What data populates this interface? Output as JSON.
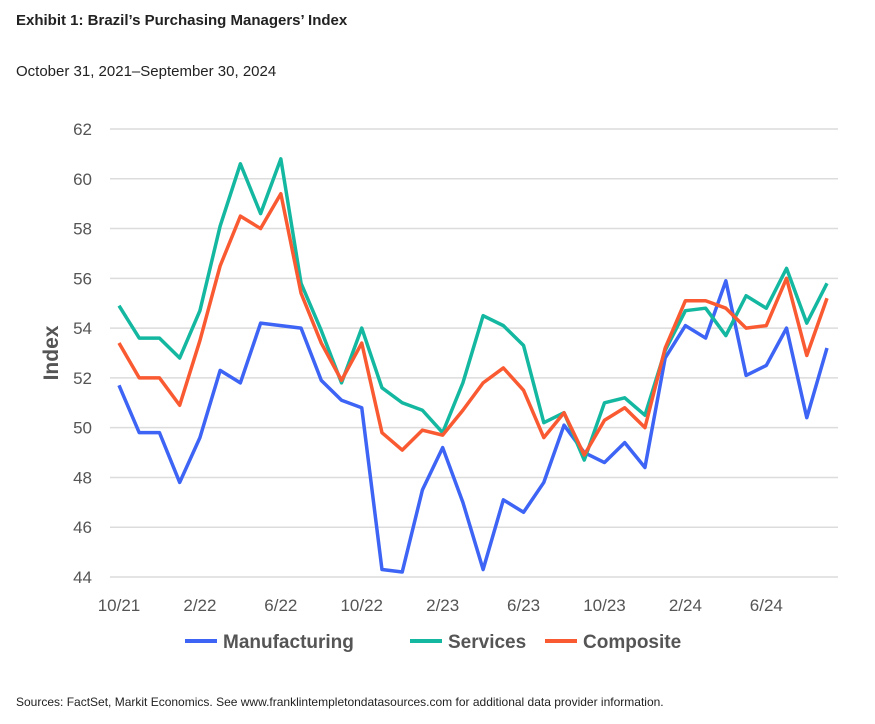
{
  "title": "Exhibit 1: Brazil’s Purchasing Managers’ Index",
  "subtitle": "October 31, 2021–September 30, 2024",
  "source": "Sources: FactSet, Markit Economics. See www.franklintempletondatasources.com for additional data provider information.",
  "chart_data": {
    "type": "line",
    "title": "Exhibit 1: Brazil’s Purchasing Managers’ Index",
    "ylabel": "Index",
    "xlabel": "",
    "ylim": [
      44,
      62
    ],
    "yticks": [
      "44",
      "46",
      "48",
      "50",
      "52",
      "54",
      "56",
      "58",
      "60",
      "62"
    ],
    "xticks": [
      "10/21",
      "2/22",
      "6/22",
      "10/22",
      "2/23",
      "6/23",
      "10/23",
      "2/24",
      "6/24"
    ],
    "grid": true,
    "legend_position": "bottom",
    "x": [
      "10/21",
      "11/21",
      "12/21",
      "1/22",
      "2/22",
      "3/22",
      "4/22",
      "5/22",
      "6/22",
      "7/22",
      "8/22",
      "9/22",
      "10/22",
      "11/22",
      "12/22",
      "1/23",
      "2/23",
      "3/23",
      "4/23",
      "5/23",
      "6/23",
      "7/23",
      "8/23",
      "9/23",
      "10/23",
      "11/23",
      "12/23",
      "1/24",
      "2/24",
      "3/24",
      "4/24",
      "5/24",
      "6/24",
      "7/24",
      "8/24",
      "9/24"
    ],
    "series": [
      {
        "name": "Manufacturing",
        "color": "#3d64f5",
        "values": [
          51.7,
          49.8,
          49.8,
          47.8,
          49.6,
          52.3,
          51.8,
          54.2,
          54.1,
          54.0,
          51.9,
          51.1,
          50.8,
          44.3,
          44.2,
          47.5,
          49.2,
          47.0,
          44.3,
          47.1,
          46.6,
          47.8,
          50.1,
          49.0,
          48.6,
          49.4,
          48.4,
          52.8,
          54.1,
          53.6,
          55.9,
          52.1,
          52.5,
          54.0,
          50.4,
          53.2
        ]
      },
      {
        "name": "Services",
        "color": "#14b8a0",
        "values": [
          54.9,
          53.6,
          53.6,
          52.8,
          54.7,
          58.1,
          60.6,
          58.6,
          60.8,
          55.8,
          53.9,
          51.8,
          54.0,
          51.6,
          51.0,
          50.7,
          49.8,
          51.8,
          54.5,
          54.1,
          53.3,
          50.2,
          50.6,
          48.7,
          51.0,
          51.2,
          50.5,
          53.1,
          54.7,
          54.8,
          53.7,
          55.3,
          54.8,
          56.4,
          54.2,
          55.8
        ]
      },
      {
        "name": "Composite",
        "color": "#fa5a32",
        "values": [
          53.4,
          52.0,
          52.0,
          50.9,
          53.5,
          56.5,
          58.5,
          58.0,
          59.4,
          55.4,
          53.4,
          51.9,
          53.4,
          49.8,
          49.1,
          49.9,
          49.7,
          50.7,
          51.8,
          52.4,
          51.5,
          49.6,
          50.6,
          48.9,
          50.3,
          50.8,
          50.0,
          53.2,
          55.1,
          55.1,
          54.8,
          54.0,
          54.1,
          56.0,
          52.9,
          55.2
        ]
      }
    ]
  }
}
